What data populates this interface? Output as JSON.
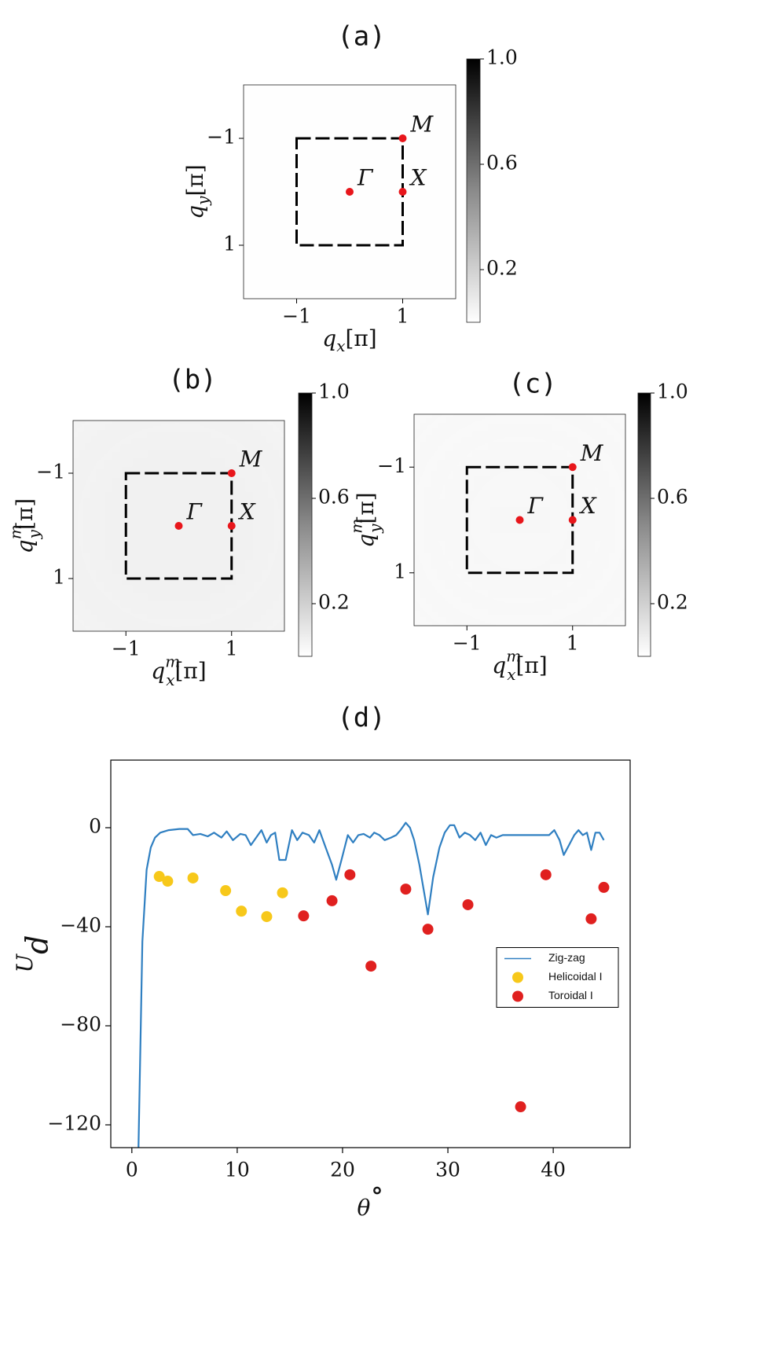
{
  "chart_data": [
    {
      "type": "heatmap",
      "title": "(a)",
      "xlabel": {
        "main": "q",
        "sub": "x",
        "tail": "[π]"
      },
      "ylabel": {
        "main": "q",
        "sub": "y",
        "tail": "[π]"
      },
      "xlim": [
        -2,
        2
      ],
      "ylim": [
        -2,
        2
      ],
      "y_inverted": true,
      "xticks": [
        -1,
        1
      ],
      "yticks": [
        -1,
        1
      ],
      "colormap": "Greys",
      "colorbar": {
        "lim": [
          0,
          1
        ],
        "ticks": [
          0.2,
          0.6,
          {
            "value": 1,
            "label": "1.0"
          }
        ]
      },
      "points": [
        {
          "label": "M",
          "x": 1,
          "y": -1
        },
        {
          "label": "Γ",
          "x": 0,
          "y": 0
        },
        {
          "label": "X",
          "x": 1,
          "y": 0
        }
      ],
      "point_color": "#e8161b"
    },
    {
      "type": "heatmap",
      "title": "(b)",
      "xlabel": {
        "main": "q",
        "sup": "m",
        "sub": "x",
        "tail": "[π]"
      },
      "ylabel": {
        "main": "q",
        "sup": "m",
        "sub": "y",
        "tail": "[π]"
      },
      "xlim": [
        -2,
        2
      ],
      "ylim": [
        -2,
        2
      ],
      "y_inverted": true,
      "xticks": [
        -1,
        1
      ],
      "yticks": [
        -1,
        1
      ],
      "colormap": "Greys",
      "colorbar": {
        "lim": [
          0,
          1
        ],
        "ticks": [
          0.2,
          0.6,
          {
            "value": 1,
            "label": "1.0"
          }
        ]
      },
      "points": [
        {
          "label": "M",
          "x": 1,
          "y": -1
        },
        {
          "label": "Γ",
          "x": 0,
          "y": 0
        },
        {
          "label": "X",
          "x": 1,
          "y": 0
        }
      ],
      "point_color": "#e8161b"
    },
    {
      "type": "heatmap",
      "title": "(c)",
      "xlabel": {
        "main": "q",
        "sup": "m",
        "sub": "x",
        "tail": "[π]"
      },
      "ylabel": {
        "main": "q",
        "sup": "m",
        "sub": "y",
        "tail": "[π]"
      },
      "xlim": [
        -2,
        2
      ],
      "ylim": [
        -2,
        2
      ],
      "y_inverted": true,
      "xticks": [
        -1,
        1
      ],
      "yticks": [
        -1,
        1
      ],
      "colormap": "Greys",
      "colorbar": {
        "lim": [
          0,
          1
        ],
        "ticks": [
          0.2,
          0.6,
          {
            "value": 1,
            "label": "1.0"
          }
        ]
      },
      "points": [
        {
          "label": "M",
          "x": 1,
          "y": -1
        },
        {
          "label": "Γ",
          "x": 0,
          "y": 0
        },
        {
          "label": "X",
          "x": 1,
          "y": 0
        }
      ],
      "point_color": "#e8161b"
    },
    {
      "type": "line_scatter",
      "title": "(d)",
      "xlabel": {
        "main": "θ",
        "sup": "∘"
      },
      "ylabel": {
        "main": "U",
        "sub": "d"
      },
      "xlim": [
        -2,
        47.3
      ],
      "ylim": [
        -129.2,
        27.3
      ],
      "xticks": [
        0,
        10,
        20,
        30,
        40
      ],
      "yticks": [
        0,
        -40,
        -80,
        -120
      ],
      "legend": "center right",
      "series": [
        {
          "name": "Zig-zag",
          "kind": "line",
          "color": "#2f7fc1",
          "x": [
            0.6,
            1.0,
            1.4,
            1.8,
            2.2,
            2.7,
            3.5,
            4.5,
            5.3,
            5.8,
            6.5,
            7.2,
            7.8,
            8.5,
            9,
            9.6,
            10.3,
            10.8,
            11.3,
            11.8,
            12.3,
            12.8,
            13.2,
            13.6,
            14,
            14.6,
            15.2,
            15.7,
            16.2,
            16.8,
            17.3,
            17.8,
            18.4,
            19,
            19.4,
            19.9,
            20.5,
            21,
            21.5,
            22,
            22.6,
            23,
            23.5,
            24,
            24.6,
            25.1,
            25.5,
            26,
            26.4,
            26.8,
            27.3,
            27.7,
            28.1,
            28.6,
            29.2,
            29.7,
            30.2,
            30.6,
            31.1,
            31.6,
            32.1,
            32.6,
            33.1,
            33.6,
            34.1,
            34.6,
            35.2,
            36,
            37,
            38,
            39,
            39.6,
            40.1,
            40.6,
            41,
            41.5,
            42,
            42.4,
            42.8,
            43.2,
            43.6,
            44,
            44.4,
            44.8
          ],
          "values": [
            -135,
            -46,
            -17,
            -8,
            -4,
            -2,
            -1,
            -0.5,
            -0.5,
            -3,
            -2.5,
            -3.5,
            -2,
            -4,
            -1.5,
            -5,
            -2.5,
            -3,
            -7,
            -4,
            -1,
            -6,
            -3,
            -2,
            -13,
            -13,
            -1,
            -5,
            -2,
            -3,
            -6,
            -1,
            -8,
            -15,
            -21,
            -13,
            -3,
            -6,
            -3,
            -2.5,
            -4,
            -2,
            -3,
            -5,
            -4,
            -3,
            -1,
            2,
            0,
            -5,
            -15,
            -25,
            -35,
            -20,
            -8,
            -2,
            1,
            1,
            -4,
            -2,
            -3,
            -5,
            -2,
            -7,
            -3,
            -4,
            -3,
            -3,
            -3,
            -3,
            -3,
            -3,
            -1,
            -5,
            -11,
            -7,
            -3,
            -1,
            -3,
            -2,
            -9,
            -2,
            -2,
            -5
          ]
        },
        {
          "name": "Helicoidal I",
          "kind": "scatter",
          "color": "#f7c81a",
          "x": [
            2.6,
            3.4,
            5.8,
            8.9,
            10.4,
            12.8,
            14.3
          ],
          "values": [
            -19.7,
            -21.6,
            -20.3,
            -25.4,
            -33.7,
            -35.9,
            -26.3
          ]
        },
        {
          "name": "Toroidal I",
          "kind": "scatter",
          "color": "#e0201f",
          "x": [
            16.3,
            19.0,
            20.7,
            22.7,
            26.0,
            28.1,
            31.9,
            36.9,
            39.3,
            43.6,
            44.8
          ],
          "values": [
            -35.6,
            -29.5,
            -19.0,
            -55.9,
            -24.8,
            -41.0,
            -31.1,
            -112.7,
            -19.0,
            -36.8,
            -24.1
          ]
        }
      ]
    }
  ]
}
